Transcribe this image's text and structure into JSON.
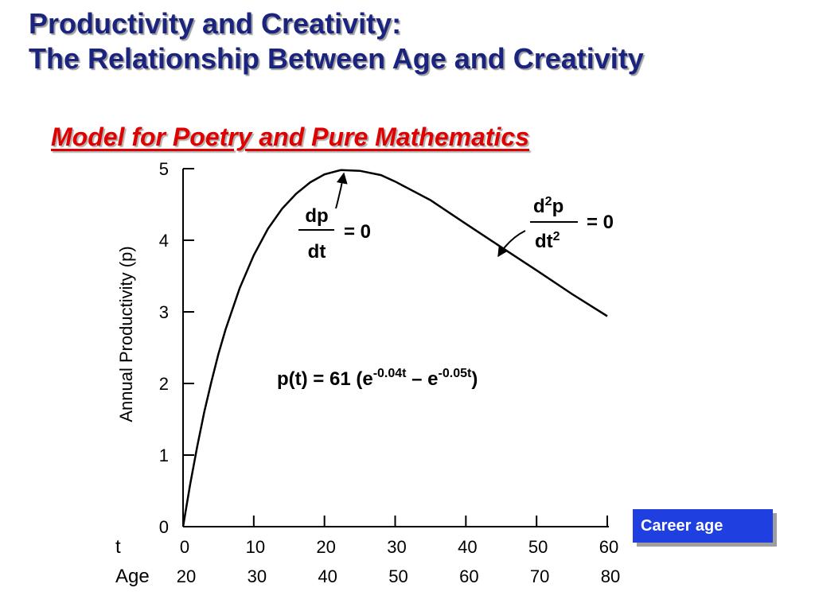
{
  "slide": {
    "title_line1": "Productivity and Creativity:",
    "title_line2": "The Relationship Between Age and Creativity",
    "subtitle": "Model for Poetry and Pure Mathematics",
    "career_label": "Career age"
  },
  "chart_data": {
    "type": "line",
    "ylabel": "Annual Productivity (p)",
    "xlim": [
      0,
      60
    ],
    "ylim": [
      0,
      5
    ],
    "grid": false,
    "yticks": [
      "0",
      "1",
      "2",
      "3",
      "4",
      "5"
    ],
    "xrow_label_t": "t",
    "xrow_label_age": "Age",
    "xticks_t": [
      "0",
      "10",
      "20",
      "30",
      "40",
      "50",
      "60"
    ],
    "xticks_age": [
      "20",
      "30",
      "40",
      "50",
      "60",
      "70",
      "80"
    ],
    "equation": {
      "lhs": "p(t) = 61 (e",
      "exp1": "-0.04t",
      "mid": " – e",
      "exp2": "-0.05t",
      "rhs": ")"
    },
    "annotation_peak": {
      "num": "dp",
      "den": "dt",
      "rhs": "= 0"
    },
    "annotation_inflection": {
      "num_base": "d",
      "num_sup": "2",
      "num_tail": "p",
      "den_base": "dt",
      "den_sup": "2",
      "rhs": "= 0"
    },
    "series": [
      {
        "x": [
          0,
          1,
          2,
          3,
          4,
          5,
          6,
          8,
          10,
          12,
          14,
          16,
          18,
          20,
          22.3,
          25,
          28,
          30,
          35,
          40,
          44.6,
          50,
          55,
          60
        ],
        "y": [
          0,
          0.59,
          1.12,
          1.6,
          2.02,
          2.41,
          2.75,
          3.33,
          3.79,
          4.16,
          4.44,
          4.65,
          4.81,
          4.92,
          4.98,
          4.97,
          4.91,
          4.82,
          4.56,
          4.23,
          3.93,
          3.58,
          3.25,
          2.94
        ]
      }
    ]
  }
}
